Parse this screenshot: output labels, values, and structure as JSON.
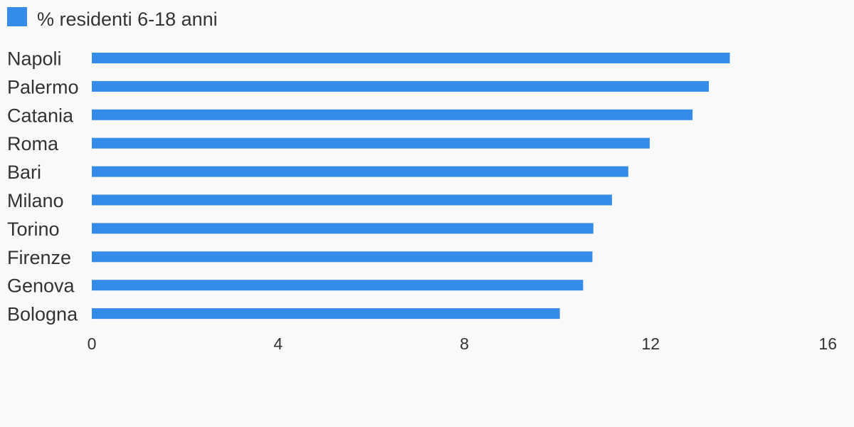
{
  "chart_data": {
    "type": "bar",
    "orientation": "horizontal",
    "categories": [
      "Napoli",
      "Palermo",
      "Catania",
      "Roma",
      "Bari",
      "Milano",
      "Torino",
      "Firenze",
      "Genova",
      "Bologna"
    ],
    "series": [
      {
        "name": "% residenti 6-18 anni",
        "values": [
          13.7,
          13.25,
          12.9,
          11.98,
          11.52,
          11.17,
          10.77,
          10.75,
          10.55,
          10.05
        ],
        "color": "#348ce8"
      }
    ],
    "xlim": [
      0,
      16
    ],
    "xticks": [
      "0",
      "4",
      "8",
      "12",
      "16"
    ],
    "grid": false,
    "legend_position": "top-left"
  }
}
